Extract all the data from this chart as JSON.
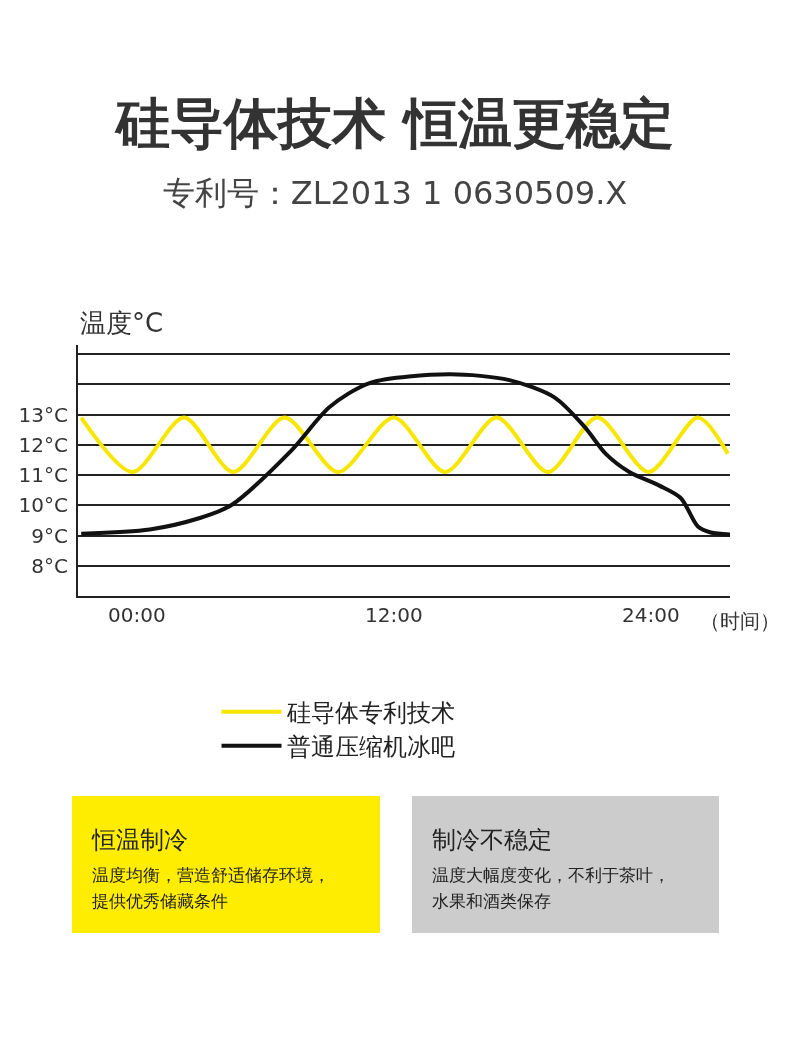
{
  "chart_data": {
    "type": "line",
    "title": "硅导体技术 恒温更稳定",
    "subtitle": "专利号：ZL2013 1 0630509.X",
    "ylabel": "温度°C",
    "xlabel": "（时间）",
    "xlim": [
      -2.75,
      27.7
    ],
    "xticks": [
      {
        "value": 0,
        "label": "00:00"
      },
      {
        "value": 12,
        "label": "12:00"
      },
      {
        "value": 24,
        "label": "24:00"
      }
    ],
    "ylim": [
      7,
      15.3
    ],
    "yticks": [
      {
        "value": 8,
        "label": "8°C"
      },
      {
        "value": 9,
        "label": "9°C"
      },
      {
        "value": 10,
        "label": "10°C"
      },
      {
        "value": 11,
        "label": "11°C"
      },
      {
        "value": 12,
        "label": "12°C"
      },
      {
        "value": 13,
        "label": "13°C"
      },
      {
        "value": 14,
        "label": null
      },
      {
        "value": 15,
        "label": null
      }
    ],
    "grid": "y",
    "legend": "bottom",
    "marker": "none",
    "line_style": "solid",
    "series": [
      {
        "name": "硅导体专利技术",
        "color": "#f7e600",
        "x": [
          -2.6,
          -0.2,
          2.2,
          4.5,
          6.9,
          9.4,
          12.0,
          14.4,
          16.8,
          19.2,
          21.5,
          23.9,
          26.2,
          27.6
        ],
        "values": [
          12.9,
          11.1,
          12.9,
          11.1,
          12.9,
          11.1,
          12.9,
          11.1,
          12.9,
          11.1,
          12.9,
          11.1,
          12.9,
          11.7
        ]
      },
      {
        "name": "普通压缩机冰吧",
        "color": "#111111",
        "x": [
          -2.6,
          0.6,
          2.9,
          4.4,
          7.2,
          9.0,
          10.9,
          14.6,
          17.4,
          19.5,
          20.9,
          21.9,
          23.0,
          24.4,
          25.4,
          26.2,
          26.8,
          27.7
        ],
        "values": [
          9.06,
          9.2,
          9.57,
          10.0,
          11.8,
          13.25,
          14.05,
          14.33,
          14.14,
          13.57,
          12.6,
          11.7,
          11.1,
          10.65,
          10.24,
          9.3,
          9.1,
          9.03
        ]
      }
    ],
    "annotations": [
      "恒温制冷",
      "温度均衡，营造舒适储存环境，提供优秀储藏条件",
      "制冷不稳定",
      "温度大幅度变化，不利于茶叶，水果和酒类保存"
    ]
  }
}
